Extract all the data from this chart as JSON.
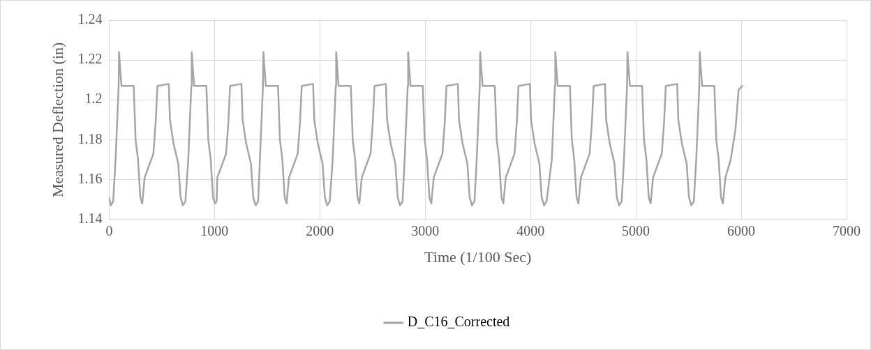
{
  "chart_data": {
    "type": "line",
    "xlabel": "Time (1/100 Sec)",
    "ylabel": "Measured Deflection (in)",
    "xlim": [
      0,
      7000
    ],
    "xticks": [
      0,
      1000,
      2000,
      3000,
      4000,
      5000,
      6000,
      7000
    ],
    "ylim": [
      1.14,
      1.24
    ],
    "yticks": [
      1.14,
      1.16,
      1.18,
      1.2,
      1.22,
      1.24
    ],
    "grid": true,
    "legend": "bottom",
    "marker": "none",
    "line_style": "solid",
    "series": [
      {
        "name": "D_C16_Corrected",
        "color": "#a5a5a5",
        "x": [
          0,
          16,
          38,
          61,
          90,
          94,
          103,
          117,
          233,
          251,
          274,
          296,
          314,
          337,
          420,
          442,
          458,
          566,
          577,
          611,
          656,
          678,
          700,
          724,
          751,
          780,
          784,
          793,
          807,
          923,
          941,
          964,
          986,
          1004,
          1020,
          1027,
          1110,
          1132,
          1148,
          1256,
          1267,
          1301,
          1346,
          1368,
          1390,
          1414,
          1431,
          1460,
          1464,
          1473,
          1487,
          1603,
          1621,
          1644,
          1666,
          1684,
          1707,
          1790,
          1812,
          1828,
          1936,
          1947,
          1981,
          2026,
          2048,
          2070,
          2094,
          2122,
          2151,
          2155,
          2164,
          2178,
          2294,
          2312,
          2335,
          2357,
          2375,
          2398,
          2481,
          2503,
          2519,
          2627,
          2638,
          2672,
          2717,
          2739,
          2761,
          2785,
          2805,
          2834,
          2838,
          2847,
          2861,
          2977,
          2995,
          3018,
          3040,
          3058,
          3081,
          3164,
          3186,
          3202,
          3310,
          3321,
          3355,
          3400,
          3422,
          3444,
          3468,
          3489,
          3518,
          3522,
          3531,
          3545,
          3661,
          3679,
          3702,
          3724,
          3742,
          3765,
          3848,
          3870,
          3886,
          3994,
          4005,
          4039,
          4084,
          4106,
          4128,
          4152,
          4202,
          4231,
          4235,
          4244,
          4258,
          4374,
          4392,
          4415,
          4437,
          4455,
          4478,
          4561,
          4583,
          4599,
          4707,
          4718,
          4752,
          4797,
          4819,
          4841,
          4865,
          4887,
          4916,
          4920,
          4929,
          4943,
          5059,
          5077,
          5100,
          5122,
          5140,
          5163,
          5246,
          5268,
          5284,
          5392,
          5403,
          5437,
          5482,
          5504,
          5526,
          5550,
          5573,
          5602,
          5606,
          5615,
          5629,
          5745,
          5763,
          5786,
          5808,
          5826,
          5850,
          5900,
          5945,
          5975,
          6010
        ],
        "values": [
          1.151,
          1.147,
          1.149,
          1.17,
          1.207,
          1.224,
          1.217,
          1.207,
          1.207,
          1.18,
          1.17,
          1.151,
          1.148,
          1.161,
          1.173,
          1.189,
          1.207,
          1.208,
          1.19,
          1.178,
          1.168,
          1.151,
          1.147,
          1.149,
          1.17,
          1.207,
          1.224,
          1.217,
          1.207,
          1.207,
          1.18,
          1.17,
          1.151,
          1.148,
          1.149,
          1.161,
          1.173,
          1.189,
          1.207,
          1.208,
          1.19,
          1.178,
          1.168,
          1.151,
          1.147,
          1.149,
          1.17,
          1.207,
          1.224,
          1.217,
          1.207,
          1.207,
          1.18,
          1.17,
          1.151,
          1.148,
          1.161,
          1.173,
          1.189,
          1.207,
          1.208,
          1.19,
          1.178,
          1.168,
          1.151,
          1.147,
          1.149,
          1.17,
          1.207,
          1.224,
          1.217,
          1.207,
          1.207,
          1.18,
          1.17,
          1.151,
          1.148,
          1.161,
          1.173,
          1.189,
          1.207,
          1.208,
          1.19,
          1.178,
          1.168,
          1.151,
          1.147,
          1.149,
          1.17,
          1.207,
          1.224,
          1.217,
          1.207,
          1.207,
          1.18,
          1.17,
          1.151,
          1.148,
          1.161,
          1.173,
          1.189,
          1.207,
          1.208,
          1.19,
          1.178,
          1.168,
          1.151,
          1.147,
          1.149,
          1.17,
          1.207,
          1.224,
          1.217,
          1.207,
          1.207,
          1.18,
          1.17,
          1.151,
          1.148,
          1.161,
          1.173,
          1.189,
          1.207,
          1.208,
          1.19,
          1.178,
          1.168,
          1.151,
          1.147,
          1.149,
          1.17,
          1.207,
          1.224,
          1.217,
          1.207,
          1.207,
          1.18,
          1.17,
          1.151,
          1.148,
          1.161,
          1.173,
          1.189,
          1.207,
          1.208,
          1.19,
          1.178,
          1.168,
          1.151,
          1.147,
          1.149,
          1.17,
          1.207,
          1.224,
          1.217,
          1.207,
          1.207,
          1.18,
          1.17,
          1.151,
          1.148,
          1.161,
          1.173,
          1.189,
          1.207,
          1.208,
          1.19,
          1.178,
          1.168,
          1.151,
          1.147,
          1.149,
          1.17,
          1.207,
          1.224,
          1.217,
          1.207,
          1.207,
          1.18,
          1.17,
          1.151,
          1.148,
          1.161,
          1.17,
          1.185,
          1.205,
          1.207
        ]
      }
    ]
  }
}
